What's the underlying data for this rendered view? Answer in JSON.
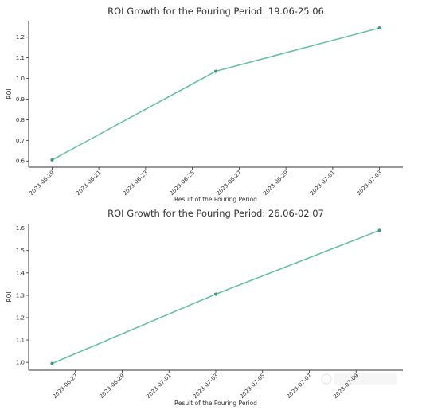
{
  "colors": {
    "series": "#66c2a5",
    "marker": "#3a9a7e",
    "axis": "#333333"
  },
  "chart_data": [
    {
      "type": "line",
      "title": "ROI Growth for the Pouring Period: 19.06-25.06",
      "xlabel": "Result of the Pouring Period",
      "ylabel": "ROI",
      "x": [
        "2023-06-19",
        "2023-06-26",
        "2023-07-03"
      ],
      "y": [
        0.605,
        1.035,
        1.245
      ],
      "xlim": [
        "2023-06-18",
        "2023-07-04"
      ],
      "ylim": [
        0.57,
        1.28
      ],
      "x_ticks": [
        "2023-06-19",
        "2023-06-21",
        "2023-06-23",
        "2023-06-25",
        "2023-06-27",
        "2023-06-29",
        "2023-07-01",
        "2023-07-03"
      ],
      "y_ticks": [
        0.6,
        0.7,
        0.8,
        0.9,
        1.0,
        1.1,
        1.2
      ],
      "y_tick_labels": [
        "0.6",
        "0.7",
        "0.8",
        "0.9",
        "1.0",
        "1.1",
        "1.2"
      ],
      "grid": false,
      "legend": "none"
    },
    {
      "type": "line",
      "title": "ROI Growth for the Pouring Period: 26.06-02.07",
      "xlabel": "Result of the Pouring Period",
      "ylabel": "ROI",
      "x": [
        "2023-06-26",
        "2023-07-03",
        "2023-07-10"
      ],
      "y": [
        0.995,
        1.305,
        1.59
      ],
      "xlim": [
        "2023-06-25",
        "2023-07-11"
      ],
      "ylim": [
        0.965,
        1.62
      ],
      "x_ticks": [
        "2023-06-27",
        "2023-06-29",
        "2023-07-01",
        "2023-07-03",
        "2023-07-05",
        "2023-07-07",
        "2023-07-09"
      ],
      "y_ticks": [
        1.0,
        1.1,
        1.2,
        1.3,
        1.4,
        1.5,
        1.6
      ],
      "y_tick_labels": [
        "1.0",
        "1.1",
        "1.2",
        "1.3",
        "1.4",
        "1.5",
        "1.6"
      ],
      "grid": false,
      "legend": "none"
    }
  ]
}
